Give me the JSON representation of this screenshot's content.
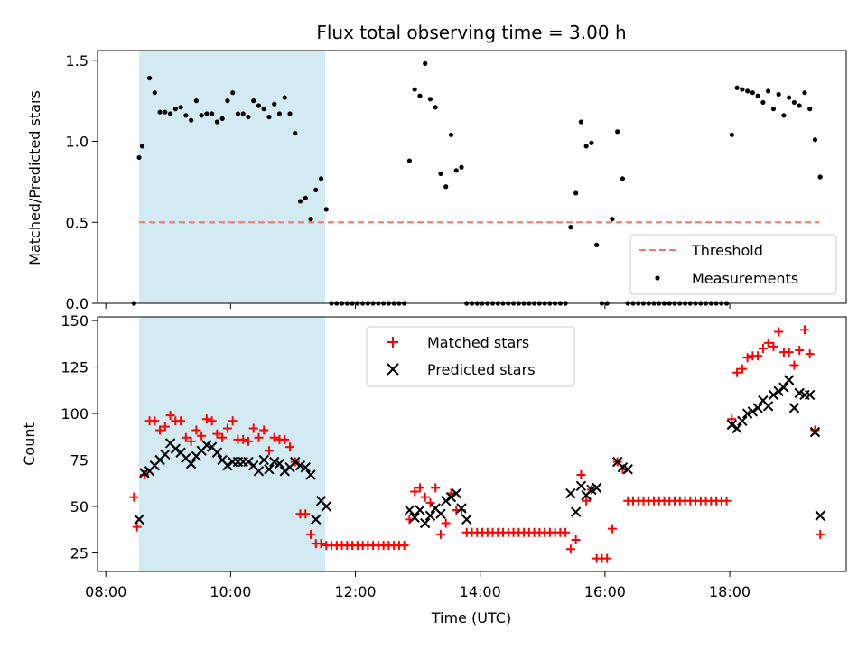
{
  "chart_data": {
    "title": "Flux total observing time = 3.00 h",
    "colors": {
      "matched": "#ff0000",
      "predicted": "#000000",
      "threshold": "#ff7070",
      "shade": "#add8e6"
    },
    "shaded_span": [
      "08:32",
      "11:31"
    ],
    "x_ticks": [
      "08:00",
      "10:00",
      "12:00",
      "14:00",
      "16:00",
      "18:00"
    ],
    "xlabel": "Time (UTC)",
    "top": {
      "type": "scatter",
      "ylabel": "Matched/Predicted stars",
      "ylim": [
        0,
        1.56
      ],
      "y_ticks": [
        "0.0",
        "0.5",
        "1.0",
        "1.5"
      ],
      "legend": {
        "threshold": "Threshold",
        "measurements": "Measurements"
      },
      "threshold": {
        "value": 0.5,
        "x_range": [
          "08:32",
          "19:26"
        ]
      },
      "measurements": [
        [
          "08:27",
          0.0
        ],
        [
          "08:32",
          0.9
        ],
        [
          "08:35",
          0.97
        ],
        [
          "08:42",
          1.39
        ],
        [
          "08:47",
          1.3
        ],
        [
          "08:52",
          1.18
        ],
        [
          "08:57",
          1.18
        ],
        [
          "09:02",
          1.17
        ],
        [
          "09:07",
          1.2
        ],
        [
          "09:12",
          1.21
        ],
        [
          "09:17",
          1.16
        ],
        [
          "09:22",
          1.13
        ],
        [
          "09:27",
          1.25
        ],
        [
          "09:32",
          1.16
        ],
        [
          "09:37",
          1.17
        ],
        [
          "09:42",
          1.17
        ],
        [
          "09:47",
          1.12
        ],
        [
          "09:52",
          1.14
        ],
        [
          "09:57",
          1.25
        ],
        [
          "10:02",
          1.3
        ],
        [
          "10:07",
          1.17
        ],
        [
          "10:12",
          1.17
        ],
        [
          "10:17",
          1.15
        ],
        [
          "10:22",
          1.25
        ],
        [
          "10:27",
          1.22
        ],
        [
          "10:32",
          1.2
        ],
        [
          "10:37",
          1.15
        ],
        [
          "10:42",
          1.23
        ],
        [
          "10:47",
          1.17
        ],
        [
          "10:52",
          1.27
        ],
        [
          "10:57",
          1.17
        ],
        [
          "11:02",
          1.05
        ],
        [
          "11:07",
          0.63
        ],
        [
          "11:12",
          0.65
        ],
        [
          "11:17",
          0.52
        ],
        [
          "11:22",
          0.7
        ],
        [
          "11:27",
          0.77
        ],
        [
          "11:32",
          0.58
        ],
        [
          "11:37",
          0
        ],
        [
          "11:42",
          0
        ],
        [
          "11:47",
          0
        ],
        [
          "11:52",
          0
        ],
        [
          "11:57",
          0
        ],
        [
          "12:02",
          0
        ],
        [
          "12:07",
          0
        ],
        [
          "12:12",
          0
        ],
        [
          "12:17",
          0
        ],
        [
          "12:22",
          0
        ],
        [
          "12:27",
          0
        ],
        [
          "12:32",
          0
        ],
        [
          "12:37",
          0
        ],
        [
          "12:42",
          0
        ],
        [
          "12:47",
          0
        ],
        [
          "12:52",
          0.88
        ],
        [
          "12:57",
          1.32
        ],
        [
          "13:02",
          1.28
        ],
        [
          "13:07",
          1.48
        ],
        [
          "13:12",
          1.26
        ],
        [
          "13:17",
          1.21
        ],
        [
          "13:22",
          0.8
        ],
        [
          "13:27",
          0.72
        ],
        [
          "13:32",
          1.04
        ],
        [
          "13:37",
          0.82
        ],
        [
          "13:42",
          0.84
        ],
        [
          "13:47",
          0
        ],
        [
          "13:52",
          0
        ],
        [
          "13:57",
          0
        ],
        [
          "14:02",
          0
        ],
        [
          "14:07",
          0
        ],
        [
          "14:12",
          0
        ],
        [
          "14:17",
          0
        ],
        [
          "14:22",
          0
        ],
        [
          "14:27",
          0
        ],
        [
          "14:32",
          0
        ],
        [
          "14:37",
          0
        ],
        [
          "14:42",
          0
        ],
        [
          "14:47",
          0
        ],
        [
          "14:52",
          0
        ],
        [
          "14:57",
          0
        ],
        [
          "15:02",
          0
        ],
        [
          "15:07",
          0
        ],
        [
          "15:12",
          0
        ],
        [
          "15:17",
          0
        ],
        [
          "15:22",
          0
        ],
        [
          "15:27",
          0.47
        ],
        [
          "15:32",
          0.68
        ],
        [
          "15:37",
          1.12
        ],
        [
          "15:42",
          0.97
        ],
        [
          "15:47",
          0.99
        ],
        [
          "15:52",
          0.36
        ],
        [
          "15:57",
          0
        ],
        [
          "16:02",
          0
        ],
        [
          "16:07",
          0.52
        ],
        [
          "16:12",
          1.06
        ],
        [
          "16:17",
          0.77
        ],
        [
          "16:22",
          0
        ],
        [
          "16:27",
          0
        ],
        [
          "16:32",
          0
        ],
        [
          "16:37",
          0
        ],
        [
          "16:42",
          0
        ],
        [
          "16:47",
          0
        ],
        [
          "16:52",
          0
        ],
        [
          "16:57",
          0
        ],
        [
          "17:02",
          0
        ],
        [
          "17:07",
          0
        ],
        [
          "17:12",
          0
        ],
        [
          "17:17",
          0
        ],
        [
          "17:22",
          0
        ],
        [
          "17:27",
          0
        ],
        [
          "17:32",
          0
        ],
        [
          "17:37",
          0
        ],
        [
          "17:42",
          0
        ],
        [
          "17:47",
          0
        ],
        [
          "17:52",
          0
        ],
        [
          "17:57",
          0
        ],
        [
          "18:02",
          1.04
        ],
        [
          "18:07",
          1.33
        ],
        [
          "18:12",
          1.32
        ],
        [
          "18:17",
          1.31
        ],
        [
          "18:22",
          1.3
        ],
        [
          "18:27",
          1.28
        ],
        [
          "18:32",
          1.24
        ],
        [
          "18:37",
          1.31
        ],
        [
          "18:42",
          1.2
        ],
        [
          "18:47",
          1.29
        ],
        [
          "18:52",
          1.16
        ],
        [
          "18:57",
          1.27
        ],
        [
          "19:02",
          1.24
        ],
        [
          "19:07",
          1.22
        ],
        [
          "19:12",
          1.3
        ],
        [
          "19:17",
          1.2
        ],
        [
          "19:22",
          1.01
        ],
        [
          "19:27",
          0.78
        ]
      ]
    },
    "bottom": {
      "type": "scatter",
      "ylabel": "Count",
      "ylim": [
        15,
        152
      ],
      "y_ticks": [
        "25",
        "50",
        "75",
        "100",
        "125",
        "150"
      ],
      "legend": {
        "matched": "Matched stars",
        "predicted": "Predicted stars"
      },
      "matched": [
        [
          "08:27",
          55
        ],
        [
          "08:30",
          39
        ],
        [
          "08:37",
          67
        ],
        [
          "08:42",
          96
        ],
        [
          "08:47",
          96
        ],
        [
          "08:52",
          91
        ],
        [
          "08:57",
          93
        ],
        [
          "09:02",
          99
        ],
        [
          "09:07",
          96
        ],
        [
          "09:12",
          96
        ],
        [
          "09:17",
          87
        ],
        [
          "09:22",
          85
        ],
        [
          "09:27",
          91
        ],
        [
          "09:32",
          88
        ],
        [
          "09:37",
          97
        ],
        [
          "09:42",
          96
        ],
        [
          "09:47",
          89
        ],
        [
          "09:52",
          87
        ],
        [
          "09:57",
          92
        ],
        [
          "10:02",
          96
        ],
        [
          "10:07",
          86
        ],
        [
          "10:12",
          86
        ],
        [
          "10:17",
          85
        ],
        [
          "10:22",
          92
        ],
        [
          "10:27",
          87
        ],
        [
          "10:32",
          91
        ],
        [
          "10:37",
          80
        ],
        [
          "10:42",
          87
        ],
        [
          "10:47",
          86
        ],
        [
          "10:52",
          86
        ],
        [
          "10:57",
          82
        ],
        [
          "11:02",
          74
        ],
        [
          "11:07",
          46
        ],
        [
          "11:12",
          46
        ],
        [
          "11:17",
          35
        ],
        [
          "11:22",
          30
        ],
        [
          "11:27",
          30
        ],
        [
          "11:32",
          29
        ],
        [
          "11:37",
          29
        ],
        [
          "11:42",
          29
        ],
        [
          "11:47",
          29
        ],
        [
          "11:52",
          29
        ],
        [
          "11:57",
          29
        ],
        [
          "12:02",
          29
        ],
        [
          "12:07",
          29
        ],
        [
          "12:12",
          29
        ],
        [
          "12:17",
          29
        ],
        [
          "12:22",
          29
        ],
        [
          "12:27",
          29
        ],
        [
          "12:32",
          29
        ],
        [
          "12:37",
          29
        ],
        [
          "12:42",
          29
        ],
        [
          "12:47",
          29
        ],
        [
          "12:52",
          43
        ],
        [
          "12:57",
          58
        ],
        [
          "13:02",
          60
        ],
        [
          "13:07",
          55
        ],
        [
          "13:12",
          52
        ],
        [
          "13:17",
          60
        ],
        [
          "13:22",
          35
        ],
        [
          "13:27",
          41
        ],
        [
          "13:32",
          57
        ],
        [
          "13:37",
          48
        ],
        [
          "13:42",
          48
        ],
        [
          "13:47",
          36
        ],
        [
          "13:52",
          36
        ],
        [
          "13:57",
          36
        ],
        [
          "14:02",
          36
        ],
        [
          "14:07",
          36
        ],
        [
          "14:12",
          36
        ],
        [
          "14:17",
          36
        ],
        [
          "14:22",
          36
        ],
        [
          "14:27",
          36
        ],
        [
          "14:32",
          36
        ],
        [
          "14:37",
          36
        ],
        [
          "14:42",
          36
        ],
        [
          "14:47",
          36
        ],
        [
          "14:52",
          36
        ],
        [
          "14:57",
          36
        ],
        [
          "15:02",
          36
        ],
        [
          "15:07",
          36
        ],
        [
          "15:12",
          36
        ],
        [
          "15:17",
          36
        ],
        [
          "15:22",
          36
        ],
        [
          "15:27",
          27
        ],
        [
          "15:32",
          32
        ],
        [
          "15:37",
          67
        ],
        [
          "15:42",
          53
        ],
        [
          "15:47",
          59
        ],
        [
          "15:52",
          22
        ],
        [
          "15:57",
          22
        ],
        [
          "16:02",
          22
        ],
        [
          "16:07",
          38
        ],
        [
          "16:12",
          74
        ],
        [
          "16:17",
          70
        ],
        [
          "16:22",
          53
        ],
        [
          "16:27",
          53
        ],
        [
          "16:32",
          53
        ],
        [
          "16:37",
          53
        ],
        [
          "16:42",
          53
        ],
        [
          "16:47",
          53
        ],
        [
          "16:52",
          53
        ],
        [
          "16:57",
          53
        ],
        [
          "17:02",
          53
        ],
        [
          "17:07",
          53
        ],
        [
          "17:12",
          53
        ],
        [
          "17:17",
          53
        ],
        [
          "17:22",
          53
        ],
        [
          "17:27",
          53
        ],
        [
          "17:32",
          53
        ],
        [
          "17:37",
          53
        ],
        [
          "17:42",
          53
        ],
        [
          "17:47",
          53
        ],
        [
          "17:52",
          53
        ],
        [
          "17:57",
          53
        ],
        [
          "18:02",
          97
        ],
        [
          "18:07",
          122
        ],
        [
          "18:12",
          124
        ],
        [
          "18:17",
          130
        ],
        [
          "18:22",
          131
        ],
        [
          "18:27",
          131
        ],
        [
          "18:32",
          135
        ],
        [
          "18:37",
          138
        ],
        [
          "18:42",
          136
        ],
        [
          "18:47",
          144
        ],
        [
          "18:52",
          133
        ],
        [
          "18:57",
          133
        ],
        [
          "19:02",
          126
        ],
        [
          "19:07",
          134
        ],
        [
          "19:12",
          145
        ],
        [
          "19:17",
          132
        ],
        [
          "19:22",
          91
        ],
        [
          "19:27",
          35
        ]
      ],
      "predicted": [
        [
          "08:32",
          43
        ],
        [
          "08:37",
          68
        ],
        [
          "08:42",
          69
        ],
        [
          "08:47",
          72
        ],
        [
          "08:52",
          75
        ],
        [
          "08:57",
          78
        ],
        [
          "09:02",
          84
        ],
        [
          "09:07",
          81
        ],
        [
          "09:12",
          79
        ],
        [
          "09:17",
          76
        ],
        [
          "09:22",
          73
        ],
        [
          "09:27",
          77
        ],
        [
          "09:32",
          80
        ],
        [
          "09:37",
          83
        ],
        [
          "09:42",
          82
        ],
        [
          "09:47",
          79
        ],
        [
          "09:52",
          75
        ],
        [
          "09:57",
          72
        ],
        [
          "10:02",
          74
        ],
        [
          "10:07",
          74
        ],
        [
          "10:12",
          74
        ],
        [
          "10:17",
          74
        ],
        [
          "10:22",
          72
        ],
        [
          "10:27",
          69
        ],
        [
          "10:32",
          75
        ],
        [
          "10:37",
          70
        ],
        [
          "10:42",
          74
        ],
        [
          "10:47",
          73
        ],
        [
          "10:52",
          69
        ],
        [
          "10:57",
          71
        ],
        [
          "11:02",
          74
        ],
        [
          "11:07",
          72
        ],
        [
          "11:12",
          71
        ],
        [
          "11:17",
          67
        ],
        [
          "11:22",
          43
        ],
        [
          "11:27",
          53
        ],
        [
          "11:32",
          50
        ],
        [
          "12:52",
          48
        ],
        [
          "12:57",
          44
        ],
        [
          "13:02",
          48
        ],
        [
          "13:07",
          41
        ],
        [
          "13:12",
          45
        ],
        [
          "13:17",
          49
        ],
        [
          "13:22",
          46
        ],
        [
          "13:27",
          53
        ],
        [
          "13:32",
          55
        ],
        [
          "13:37",
          57
        ],
        [
          "13:42",
          49
        ],
        [
          "13:47",
          43
        ],
        [
          "15:27",
          57
        ],
        [
          "15:32",
          47
        ],
        [
          "15:37",
          61
        ],
        [
          "15:42",
          56
        ],
        [
          "15:47",
          59
        ],
        [
          "15:52",
          60
        ],
        [
          "16:12",
          74
        ],
        [
          "16:17",
          71
        ],
        [
          "16:22",
          70
        ],
        [
          "18:02",
          94
        ],
        [
          "18:07",
          92
        ],
        [
          "18:12",
          96
        ],
        [
          "18:17",
          100
        ],
        [
          "18:22",
          101
        ],
        [
          "18:27",
          103
        ],
        [
          "18:32",
          107
        ],
        [
          "18:37",
          104
        ],
        [
          "18:42",
          110
        ],
        [
          "18:47",
          112
        ],
        [
          "18:52",
          114
        ],
        [
          "18:57",
          118
        ],
        [
          "19:02",
          103
        ],
        [
          "19:07",
          111
        ],
        [
          "19:12",
          110
        ],
        [
          "19:17",
          110
        ],
        [
          "19:22",
          90
        ],
        [
          "19:27",
          45
        ]
      ]
    }
  }
}
